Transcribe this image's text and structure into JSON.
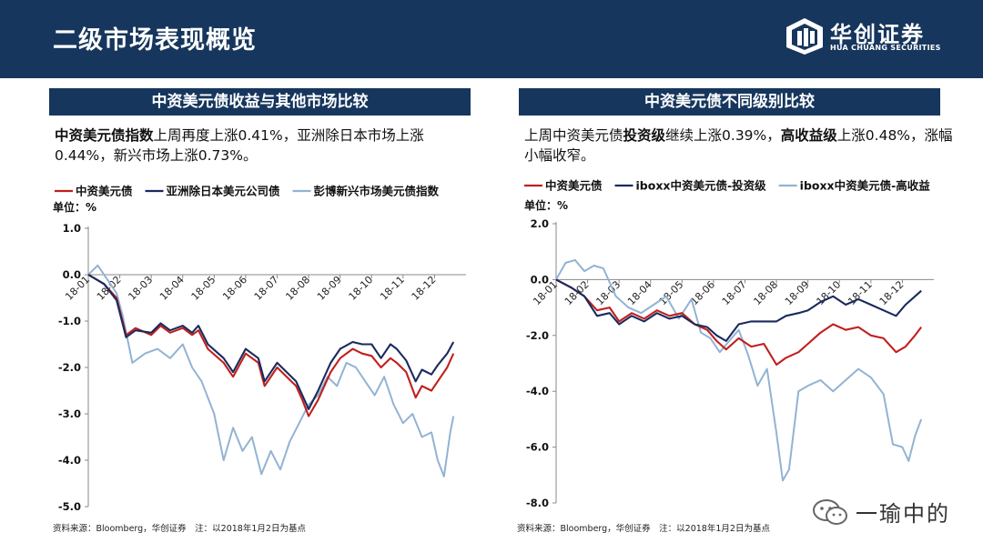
{
  "header": {
    "title": "二级市场表现概览"
  },
  "logo": {
    "name_cn": "华创证券",
    "name_en": "HUA CHUANG SECURITIES"
  },
  "left_panel": {
    "title": "中资美元债收益与其他市场比较",
    "desc_bold": "中资美元债指数",
    "desc_rest": "上周再度上涨0.41%，亚洲除日本市场上涨0.44%，新兴市场上涨0.73%。",
    "footnote": "资料来源：Bloomberg，华创证券　注：以2018年1月2日为基点"
  },
  "right_panel": {
    "title": "中资美元债不同级别比较",
    "desc_1": "上周中资美元债",
    "desc_bold_1": "投资级",
    "desc_2": "继续上涨0.39%，",
    "desc_bold_2": "高收益级",
    "desc_3": "上涨0.48%，涨幅小幅收窄。",
    "footnote": "资料来源：Bloomberg，华创证券　注：以2018年1月2日为基点"
  },
  "watermark": {
    "text": "一瑜中的"
  },
  "colors": {
    "navy": "#16365d",
    "red": "#c0201e",
    "dark_navy": "#1a2a5e",
    "light_blue": "#92b3d4"
  },
  "chart_data": [
    {
      "type": "line",
      "unit_label": "单位：%",
      "ylim": [
        -5.0,
        1.0
      ],
      "yticks": [
        1.0,
        0.0,
        -1.0,
        -2.0,
        -3.0,
        -4.0,
        -5.0
      ],
      "ytick_labels": [
        "1.0",
        "0.0",
        "-1.0",
        "-2.0",
        "-3.0",
        "-4.0",
        "-5.0"
      ],
      "xlim": [
        0,
        12
      ],
      "xticks": [
        0,
        1,
        2,
        3,
        4,
        5,
        6,
        7,
        8,
        9,
        10,
        11
      ],
      "xtick_labels": [
        "18-01",
        "18-02",
        "18-03",
        "18-04",
        "18-05",
        "18-06",
        "18-07",
        "18-08",
        "18-09",
        "18-10",
        "18-11",
        "18-12"
      ],
      "grid": false,
      "legend": "top",
      "series": [
        {
          "name": "中资美元债",
          "color": "#c0201e",
          "x": [
            0,
            0.5,
            0.9,
            1.2,
            1.5,
            2.0,
            2.3,
            2.6,
            3.0,
            3.3,
            3.5,
            3.8,
            4.3,
            4.6,
            5.0,
            5.4,
            5.6,
            6.0,
            6.3,
            6.6,
            6.8,
            7.0,
            7.3,
            7.7,
            8.0,
            8.4,
            8.7,
            9.0,
            9.3,
            9.6,
            9.8,
            10.1,
            10.4,
            10.6,
            10.9,
            11.1,
            11.4,
            11.6
          ],
          "y": [
            0,
            -0.2,
            -0.5,
            -1.3,
            -1.15,
            -1.3,
            -1.1,
            -1.25,
            -1.15,
            -1.3,
            -1.2,
            -1.6,
            -1.9,
            -2.2,
            -1.7,
            -1.9,
            -2.4,
            -2.0,
            -2.2,
            -2.4,
            -2.7,
            -3.05,
            -2.7,
            -2.1,
            -1.8,
            -1.6,
            -1.7,
            -1.75,
            -2.0,
            -1.8,
            -1.9,
            -2.1,
            -2.65,
            -2.4,
            -2.5,
            -2.3,
            -2.0,
            -1.7
          ]
        },
        {
          "name": "亚洲除日本美元公司债",
          "color": "#1a2a5e",
          "x": [
            0,
            0.5,
            0.9,
            1.2,
            1.5,
            2.0,
            2.3,
            2.6,
            3.0,
            3.3,
            3.5,
            3.8,
            4.3,
            4.6,
            5.0,
            5.4,
            5.6,
            6.0,
            6.3,
            6.6,
            6.8,
            7.0,
            7.3,
            7.7,
            8.0,
            8.4,
            8.7,
            9.0,
            9.3,
            9.6,
            9.8,
            10.1,
            10.4,
            10.6,
            10.9,
            11.1,
            11.4,
            11.6
          ],
          "y": [
            0,
            -0.2,
            -0.55,
            -1.35,
            -1.2,
            -1.25,
            -1.05,
            -1.2,
            -1.1,
            -1.25,
            -1.1,
            -1.5,
            -1.8,
            -2.1,
            -1.6,
            -1.8,
            -2.3,
            -1.9,
            -2.1,
            -2.3,
            -2.6,
            -2.9,
            -2.5,
            -1.9,
            -1.6,
            -1.45,
            -1.5,
            -1.5,
            -1.8,
            -1.5,
            -1.6,
            -1.85,
            -2.3,
            -2.05,
            -2.15,
            -1.95,
            -1.7,
            -1.45
          ]
        },
        {
          "name": "彭博新兴市场美元债指数",
          "color": "#92b3d4",
          "x": [
            0,
            0.3,
            0.6,
            0.9,
            1.1,
            1.4,
            1.8,
            2.2,
            2.6,
            3.0,
            3.3,
            3.6,
            4.0,
            4.3,
            4.6,
            4.9,
            5.2,
            5.5,
            5.8,
            6.1,
            6.4,
            6.7,
            7.0,
            7.3,
            7.6,
            7.9,
            8.2,
            8.5,
            8.8,
            9.1,
            9.4,
            9.7,
            10.0,
            10.3,
            10.6,
            10.9,
            11.1,
            11.3,
            11.5,
            11.6
          ],
          "y": [
            0,
            0.2,
            -0.1,
            -0.4,
            -0.9,
            -1.9,
            -1.7,
            -1.6,
            -1.8,
            -1.5,
            -2.0,
            -2.3,
            -3.0,
            -4.0,
            -3.3,
            -3.8,
            -3.5,
            -4.3,
            -3.8,
            -4.2,
            -3.6,
            -3.2,
            -2.8,
            -2.6,
            -2.2,
            -2.4,
            -1.9,
            -2.0,
            -2.3,
            -2.6,
            -2.2,
            -2.8,
            -3.2,
            -3.0,
            -3.5,
            -3.4,
            -4.0,
            -4.35,
            -3.4,
            -3.05
          ]
        }
      ]
    },
    {
      "type": "line",
      "unit_label": "单位：%",
      "ylim": [
        -8.0,
        2.0
      ],
      "yticks": [
        2.0,
        0.0,
        -2.0,
        -4.0,
        -6.0,
        -8.0
      ],
      "ytick_labels": [
        "2.0",
        "0.0",
        "-2.0",
        "-4.0",
        "-6.0",
        "-8.0"
      ],
      "xlim": [
        0,
        12
      ],
      "xticks": [
        0,
        1,
        2,
        3,
        4,
        5,
        6,
        7,
        8,
        9,
        10,
        11
      ],
      "xtick_labels": [
        "18-01",
        "18-02",
        "18-03",
        "18-04",
        "18-05",
        "18-06",
        "18-07",
        "18-08",
        "18-09",
        "18-10",
        "18-11",
        "18-12"
      ],
      "grid": false,
      "legend": "top",
      "series": [
        {
          "name": "中资美元债",
          "color": "#c0201e",
          "x": [
            0,
            0.5,
            0.9,
            1.3,
            1.7,
            2.0,
            2.4,
            2.8,
            3.2,
            3.6,
            4.0,
            4.4,
            4.8,
            5.1,
            5.4,
            5.8,
            6.2,
            6.6,
            7.0,
            7.3,
            7.7,
            8.0,
            8.4,
            8.8,
            9.2,
            9.6,
            10.0,
            10.4,
            10.8,
            11.1,
            11.4,
            11.6
          ],
          "y": [
            0,
            -0.3,
            -0.6,
            -1.1,
            -1.0,
            -1.5,
            -1.2,
            -1.4,
            -1.1,
            -1.3,
            -1.2,
            -1.6,
            -1.8,
            -2.2,
            -2.5,
            -2.1,
            -2.4,
            -2.3,
            -3.05,
            -2.8,
            -2.6,
            -2.3,
            -1.9,
            -1.6,
            -1.8,
            -1.7,
            -2.0,
            -2.1,
            -2.6,
            -2.4,
            -2.0,
            -1.7
          ]
        },
        {
          "name": "iboxx中资美元债-投资级",
          "color": "#1a2a5e",
          "x": [
            0,
            0.5,
            0.9,
            1.3,
            1.7,
            2.0,
            2.4,
            2.8,
            3.2,
            3.6,
            4.0,
            4.4,
            4.8,
            5.1,
            5.4,
            5.8,
            6.2,
            6.6,
            7.0,
            7.3,
            7.7,
            8.0,
            8.4,
            8.8,
            9.2,
            9.6,
            10.0,
            10.4,
            10.8,
            11.1,
            11.4,
            11.6
          ],
          "y": [
            0,
            -0.3,
            -0.6,
            -1.3,
            -1.2,
            -1.6,
            -1.3,
            -1.5,
            -1.2,
            -1.4,
            -1.3,
            -1.6,
            -1.7,
            -2.0,
            -2.2,
            -1.6,
            -1.5,
            -1.5,
            -1.5,
            -1.3,
            -1.2,
            -1.1,
            -0.8,
            -0.6,
            -0.9,
            -0.7,
            -0.9,
            -1.1,
            -1.3,
            -0.9,
            -0.6,
            -0.4
          ]
        },
        {
          "name": "iboxx中资美元债-高收益",
          "color": "#92b3d4",
          "x": [
            0,
            0.3,
            0.6,
            0.9,
            1.2,
            1.5,
            1.9,
            2.3,
            2.7,
            3.1,
            3.5,
            3.9,
            4.3,
            4.6,
            4.9,
            5.2,
            5.5,
            5.8,
            6.1,
            6.4,
            6.7,
            7.0,
            7.2,
            7.4,
            7.7,
            8.0,
            8.4,
            8.8,
            9.2,
            9.6,
            10.0,
            10.4,
            10.7,
            11.0,
            11.2,
            11.4,
            11.6
          ],
          "y": [
            0,
            0.6,
            0.7,
            0.3,
            0.5,
            0.4,
            -0.6,
            -1.0,
            -1.2,
            -0.9,
            -0.6,
            -1.4,
            -0.7,
            -1.9,
            -2.1,
            -2.6,
            -2.2,
            -1.8,
            -2.7,
            -3.8,
            -3.2,
            -5.5,
            -7.2,
            -6.8,
            -4.0,
            -3.8,
            -3.6,
            -4.0,
            -3.6,
            -3.2,
            -3.5,
            -4.1,
            -5.9,
            -6.0,
            -6.5,
            -5.6,
            -5.0
          ]
        }
      ]
    }
  ]
}
